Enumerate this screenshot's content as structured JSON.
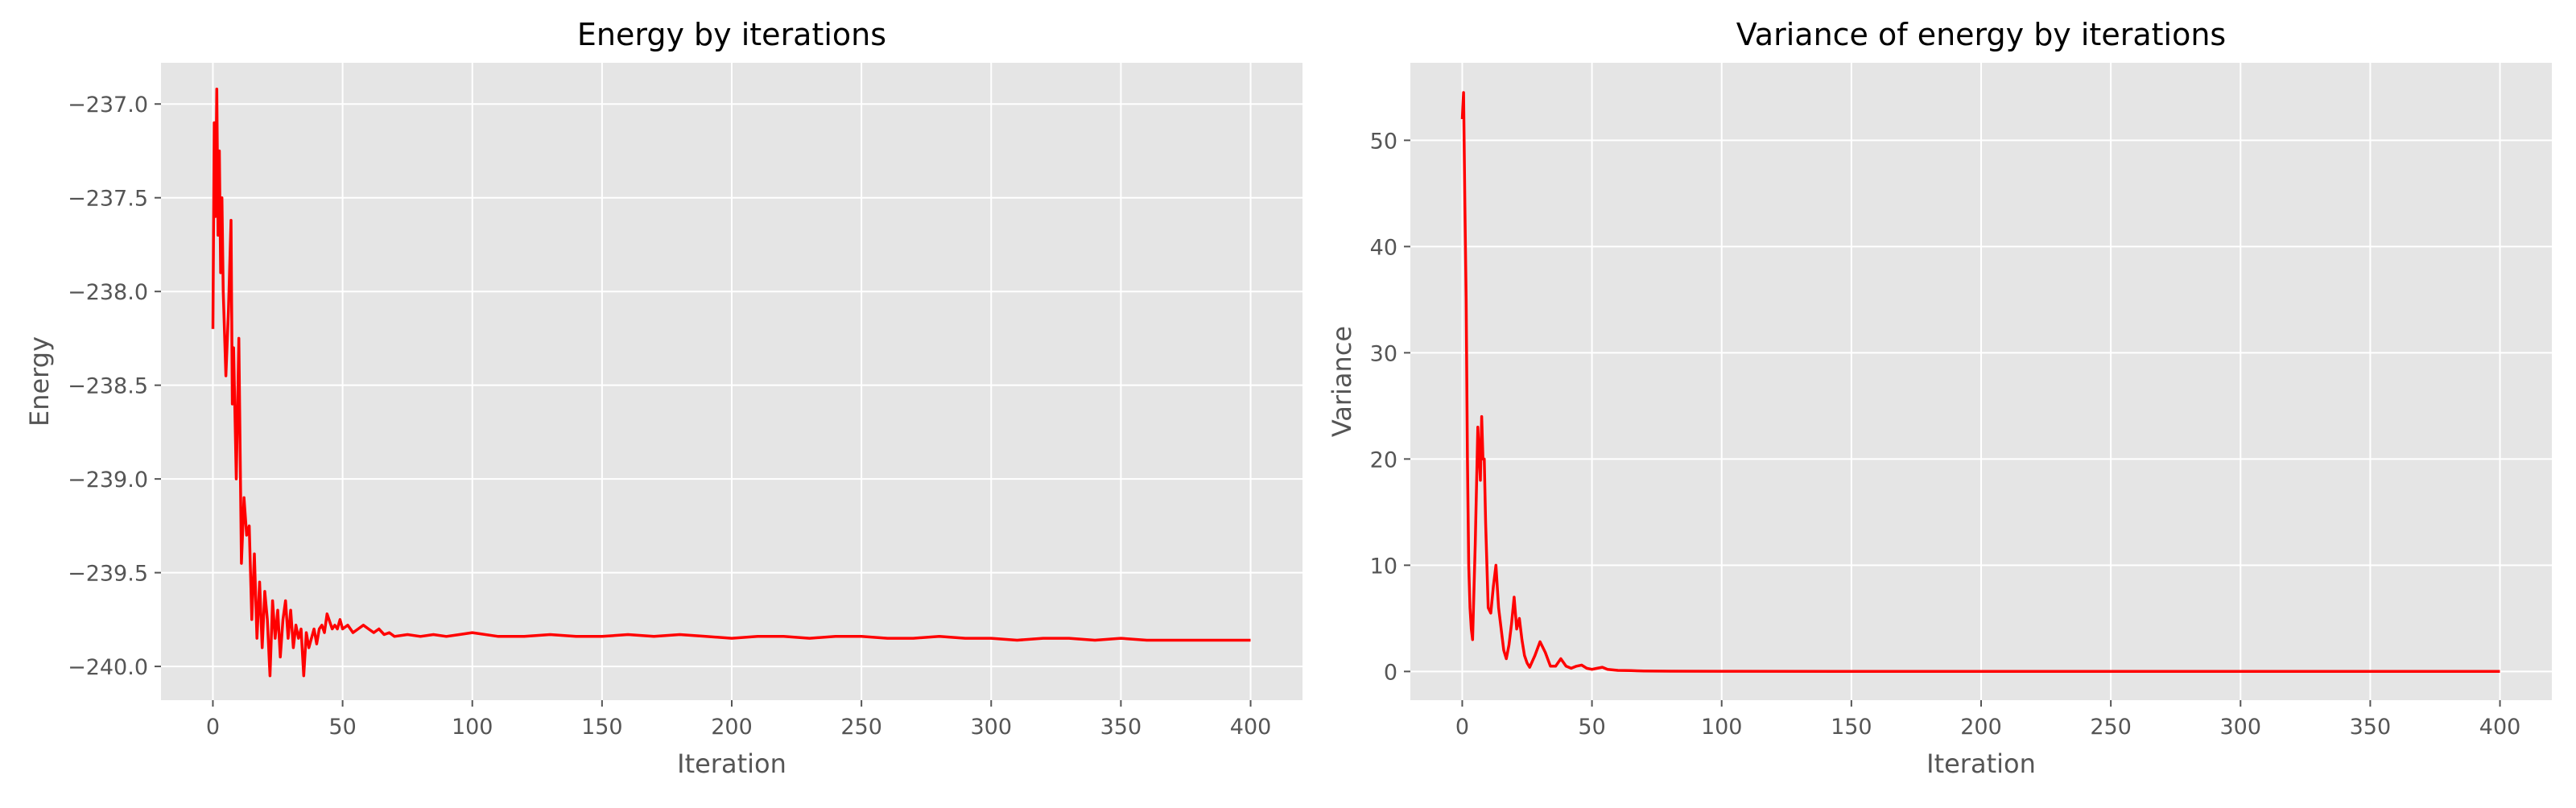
{
  "colors": {
    "background": "#ffffff",
    "panel": "#e5e5e5",
    "grid": "#ffffff",
    "line": "#ff0000",
    "text": "#000000",
    "tick_text": "#555555"
  },
  "chart_data": [
    {
      "type": "line",
      "title": "Energy by iterations",
      "xlabel": "Iteration",
      "ylabel": "Energy",
      "xlim": [
        -20,
        420
      ],
      "ylim": [
        -240.18,
        -236.78
      ],
      "xticks": [
        0,
        50,
        100,
        150,
        200,
        250,
        300,
        350,
        400
      ],
      "yticks": [
        -237.0,
        -237.5,
        -238.0,
        -238.5,
        -239.0,
        -239.5,
        -240.0
      ],
      "ytick_labels": [
        "−237.0",
        "−237.5",
        "−238.0",
        "−238.5",
        "−239.0",
        "−239.5",
        "−240.0"
      ],
      "grid": true,
      "series": [
        {
          "color": "#ff0000",
          "x": [
            0,
            0.5,
            1,
            1.5,
            2,
            2.5,
            3,
            3.5,
            4,
            5,
            6,
            7,
            7.5,
            8,
            9,
            10,
            11,
            12,
            13,
            14,
            15,
            16,
            17,
            18,
            19,
            20,
            21,
            22,
            23,
            24,
            25,
            26,
            27,
            28,
            29,
            30,
            31,
            32,
            33,
            34,
            35,
            36,
            37,
            38,
            39,
            40,
            41,
            42,
            43,
            44,
            45,
            46,
            47,
            48,
            49,
            50,
            52,
            54,
            56,
            58,
            60,
            62,
            64,
            66,
            68,
            70,
            75,
            80,
            85,
            90,
            95,
            100,
            110,
            120,
            130,
            140,
            150,
            160,
            170,
            180,
            190,
            200,
            210,
            220,
            230,
            240,
            250,
            260,
            270,
            280,
            290,
            300,
            310,
            320,
            330,
            340,
            350,
            360,
            370,
            380,
            390,
            400
          ],
          "y": [
            -238.2,
            -237.1,
            -237.6,
            -236.92,
            -237.7,
            -237.25,
            -237.9,
            -237.5,
            -238.0,
            -238.45,
            -238.1,
            -237.62,
            -238.6,
            -238.3,
            -239.0,
            -238.25,
            -239.45,
            -239.1,
            -239.3,
            -239.25,
            -239.75,
            -239.4,
            -239.85,
            -239.55,
            -239.9,
            -239.6,
            -239.75,
            -240.05,
            -239.65,
            -239.85,
            -239.7,
            -239.95,
            -239.75,
            -239.65,
            -239.85,
            -239.7,
            -239.9,
            -239.78,
            -239.85,
            -239.8,
            -240.05,
            -239.82,
            -239.9,
            -239.85,
            -239.8,
            -239.88,
            -239.8,
            -239.78,
            -239.82,
            -239.72,
            -239.76,
            -239.8,
            -239.78,
            -239.8,
            -239.75,
            -239.8,
            -239.78,
            -239.82,
            -239.8,
            -239.78,
            -239.8,
            -239.82,
            -239.8,
            -239.83,
            -239.82,
            -239.84,
            -239.83,
            -239.84,
            -239.83,
            -239.84,
            -239.83,
            -239.82,
            -239.84,
            -239.84,
            -239.83,
            -239.84,
            -239.84,
            -239.83,
            -239.84,
            -239.83,
            -239.84,
            -239.85,
            -239.84,
            -239.84,
            -239.85,
            -239.84,
            -239.84,
            -239.85,
            -239.85,
            -239.84,
            -239.85,
            -239.85,
            -239.86,
            -239.85,
            -239.85,
            -239.86,
            -239.85,
            -239.86,
            -239.86,
            -239.86,
            -239.86,
            -239.86
          ]
        }
      ]
    },
    {
      "type": "line",
      "title": "Variance of energy by iterations",
      "xlabel": "Iteration",
      "ylabel": "Variance",
      "xlim": [
        -20,
        420
      ],
      "ylim": [
        -2.7,
        57.3
      ],
      "xticks": [
        0,
        50,
        100,
        150,
        200,
        250,
        300,
        350,
        400
      ],
      "yticks": [
        0,
        10,
        20,
        30,
        40,
        50
      ],
      "ytick_labels": [
        "0",
        "10",
        "20",
        "30",
        "40",
        "50"
      ],
      "grid": true,
      "series": [
        {
          "color": "#ff0000",
          "x": [
            0,
            0.5,
            1,
            1.5,
            2,
            2.5,
            3,
            3.5,
            4,
            5,
            6,
            7,
            7.5,
            8,
            8.5,
            9,
            10,
            11,
            12,
            13,
            14,
            15,
            16,
            17,
            18,
            19,
            20,
            21,
            22,
            23,
            24,
            25,
            26,
            28,
            30,
            32,
            34,
            36,
            38,
            40,
            42,
            44,
            46,
            48,
            50,
            52,
            54,
            56,
            58,
            60,
            65,
            70,
            80,
            100,
            150,
            200,
            250,
            300,
            350,
            400
          ],
          "y": [
            52,
            54.5,
            44,
            35,
            20,
            10,
            6,
            4,
            3,
            12,
            23,
            18,
            24,
            20,
            20,
            14,
            6,
            5.5,
            8,
            10,
            6,
            4,
            2,
            1.2,
            2.5,
            4.5,
            7,
            4,
            5,
            3,
            1.5,
            0.8,
            0.4,
            1.5,
            2.8,
            1.8,
            0.5,
            0.5,
            1.2,
            0.5,
            0.3,
            0.5,
            0.6,
            0.3,
            0.2,
            0.3,
            0.4,
            0.2,
            0.15,
            0.1,
            0.08,
            0.05,
            0.03,
            0.02,
            0.01,
            0.01,
            0.01,
            0.01,
            0.01,
            0.01
          ]
        }
      ]
    }
  ]
}
